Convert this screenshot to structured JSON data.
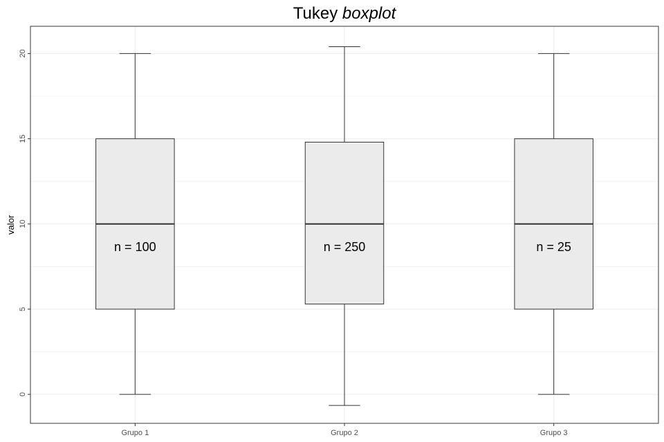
{
  "chart_data": {
    "type": "boxplot",
    "title": "Tukey",
    "title_italic": "boxplot",
    "xlabel": "",
    "ylabel": "valor",
    "ylim": [
      -1.7,
      21.6
    ],
    "yticks": [
      0,
      5,
      10,
      15,
      20
    ],
    "grid": true,
    "categories": [
      "Grupo 1",
      "Grupo 2",
      "Grupo 3"
    ],
    "boxes": [
      {
        "min": 0,
        "q1": 5,
        "median": 10,
        "q3": 15,
        "max": 20,
        "label": "n = 100"
      },
      {
        "min": -0.65,
        "q1": 5.3,
        "median": 10,
        "q3": 14.8,
        "max": 20.4,
        "label": "n = 250"
      },
      {
        "min": 0,
        "q1": 5,
        "median": 10,
        "q3": 15,
        "max": 20,
        "label": "n = 25"
      }
    ],
    "colors": {
      "box_fill": "#ebebeb",
      "line": "#333333",
      "grid": "#ebebeb",
      "panel_border": "#333333"
    }
  }
}
